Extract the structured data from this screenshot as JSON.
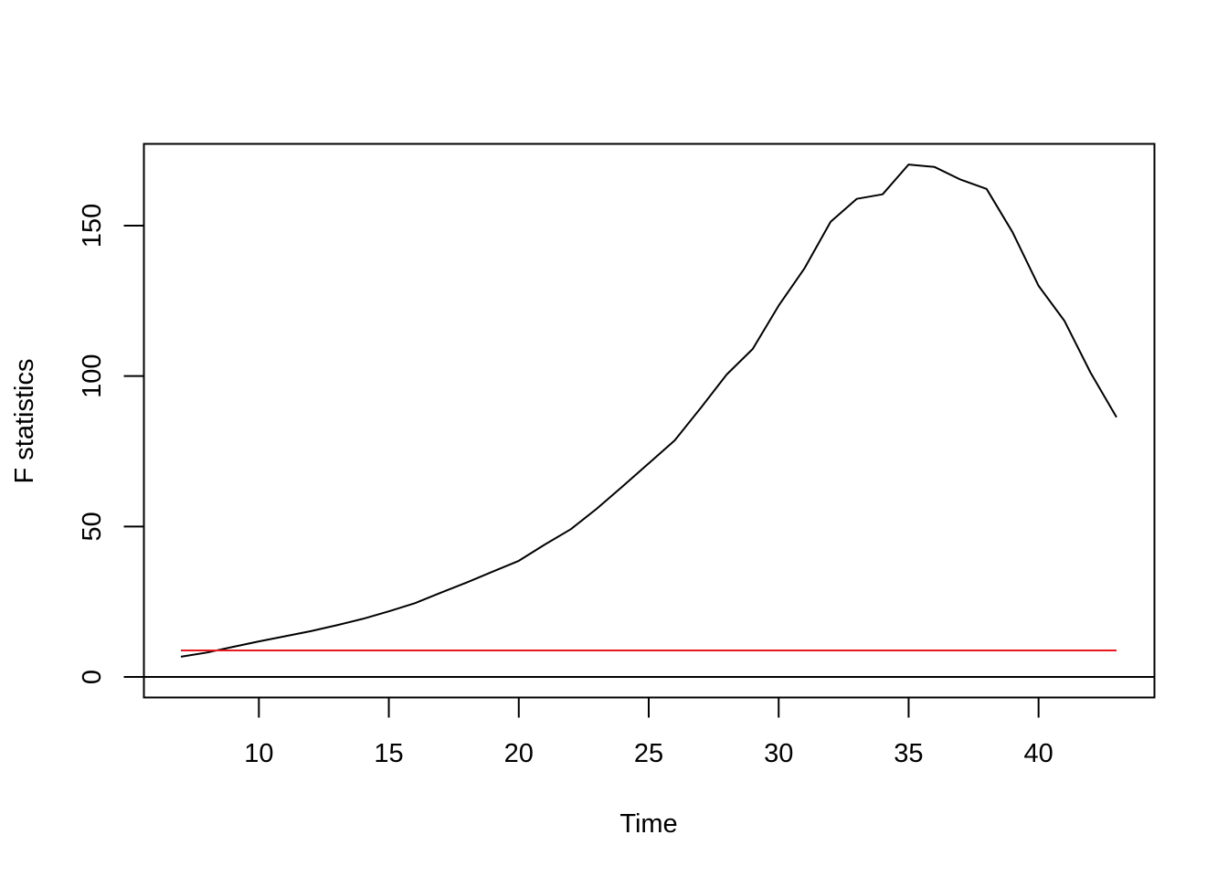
{
  "chart_data": {
    "type": "line",
    "title": "",
    "xlabel": "Time",
    "ylabel": "F statistics",
    "xlim": [
      7,
      43
    ],
    "ylim": [
      0,
      170
    ],
    "x_ticks": [
      10,
      15,
      20,
      25,
      30,
      35,
      40
    ],
    "y_ticks": [
      0,
      50,
      100,
      150
    ],
    "grid": false,
    "legend": "none",
    "reference_lines": [
      {
        "orientation": "horizontal",
        "y": 0,
        "color": "#000000"
      }
    ],
    "series": [
      {
        "color": "#000000",
        "x": [
          7,
          8,
          9,
          10,
          11,
          12,
          13,
          14,
          15,
          16,
          17,
          18,
          19,
          20,
          21,
          22,
          23,
          24,
          25,
          26,
          27,
          28,
          29,
          30,
          31,
          32,
          33,
          34,
          35,
          36,
          37,
          38,
          39,
          40,
          41,
          42,
          43
        ],
        "values": [
          6.7,
          8.1,
          10.0,
          11.8,
          13.5,
          15.2,
          17.2,
          19.3,
          21.8,
          24.5,
          28.0,
          31.4,
          35.0,
          38.6,
          44.0,
          49.1,
          55.9,
          63.4,
          71.0,
          78.6,
          89.4,
          100.5,
          109.0,
          123.4,
          135.9,
          151.3,
          158.9,
          160.4,
          170.3,
          169.5,
          165.3,
          162.2,
          147.8,
          130.0,
          118.3,
          101.1,
          86.3
        ]
      },
      {
        "color": "#e8181d",
        "x": [
          7,
          43
        ],
        "values": [
          8.8,
          8.8
        ]
      }
    ]
  }
}
